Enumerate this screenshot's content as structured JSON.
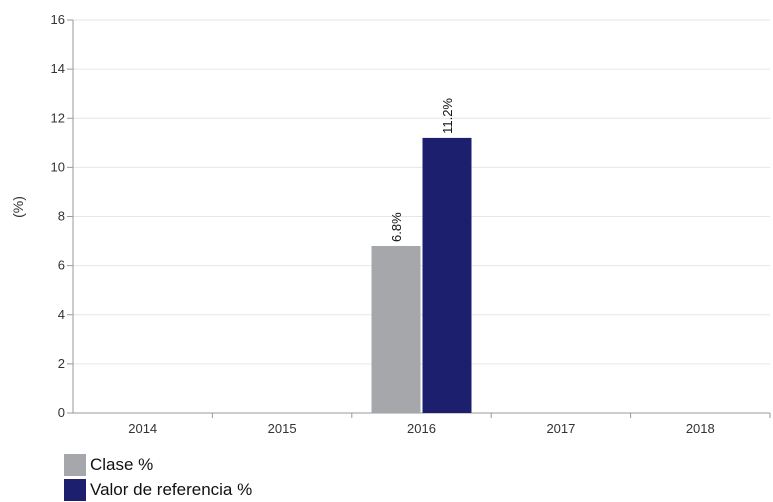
{
  "chart_data": {
    "type": "bar",
    "categories": [
      "2014",
      "2015",
      "2016",
      "2017",
      "2018"
    ],
    "series": [
      {
        "name": "Clase %",
        "color": "#a6a7aa",
        "values": [
          null,
          null,
          6.8,
          null,
          null
        ],
        "labels": [
          "",
          "",
          "6.8%",
          "",
          ""
        ]
      },
      {
        "name": "Valor de referencia %",
        "color": "#1c1f6d",
        "values": [
          null,
          null,
          11.2,
          null,
          null
        ],
        "labels": [
          "",
          "",
          "11.2%",
          "",
          ""
        ]
      }
    ],
    "ylabel": "(%)",
    "ylim": [
      0,
      16
    ],
    "yticks": [
      "0",
      "2",
      "4",
      "6",
      "8",
      "10",
      "12",
      "14",
      "16"
    ],
    "grid": true,
    "legend_position": "bottom-left"
  }
}
